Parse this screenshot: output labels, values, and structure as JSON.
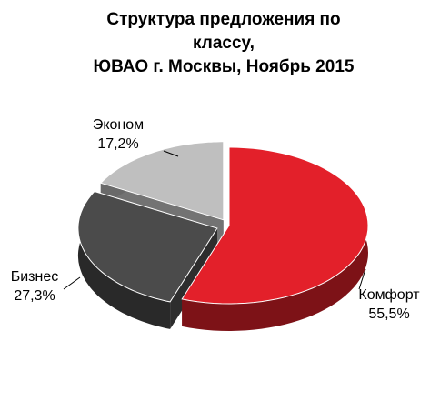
{
  "chart_data": {
    "type": "pie",
    "title": [
      "Структура предложения по",
      "классу,",
      "ЮВАО г. Москвы, Ноябрь 2015"
    ],
    "categories": [
      "Комфорт",
      "Бизнес",
      "Эконом"
    ],
    "values": [
      55.5,
      27.3,
      17.2
    ],
    "value_labels": [
      "55,5%",
      "27,3%",
      "17,2%"
    ],
    "colors": [
      "#e3202a",
      "#4b4b4b",
      "#bfbfbf"
    ]
  }
}
